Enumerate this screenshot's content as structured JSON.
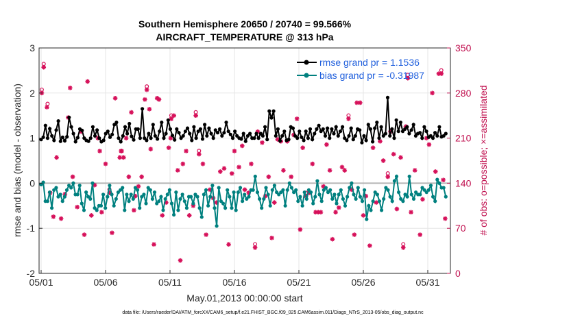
{
  "chart_data": {
    "type": "line",
    "title": "Southern Hemisphere 20650 / 20740 = 99.566%",
    "subtitle": "AIRCRAFT_TEMPERATURE @ 313 hPa",
    "xlabel": "May.01,2013 00:00:00 start",
    "ylabel_left": "rmse and bias (model - observation)",
    "ylabel_right": "# of obs: o=possible; ×=assimilated",
    "footer": "data file: /Users/raeder/DAI/ATM_forcXX/CAM6_setup/f.e21.FHIST_BGC.f09_025.CAM6assim.011/Diags_NTrS_2013-05/obs_diag_output.nc",
    "x_range_days": [
      0,
      31.5
    ],
    "x_ticks": [
      {
        "day": 0,
        "label": "05/01"
      },
      {
        "day": 5,
        "label": "05/06"
      },
      {
        "day": 10,
        "label": "05/11"
      },
      {
        "day": 15,
        "label": "05/16"
      },
      {
        "day": 20,
        "label": "05/21"
      },
      {
        "day": 25,
        "label": "05/26"
      },
      {
        "day": 30,
        "label": "05/31"
      }
    ],
    "y_left": {
      "min": -2,
      "max": 3,
      "ticks": [
        "-2",
        "-1",
        "0",
        "1",
        "2",
        "3"
      ]
    },
    "y_right": {
      "min": 0,
      "max": 350,
      "ticks": [
        "0",
        "70",
        "140",
        "210",
        "280",
        "350"
      ]
    },
    "grid": true,
    "legend_position": "top-right",
    "colors": {
      "rmse": "#000000",
      "bias": "#00807f",
      "obs": "#d6115a",
      "legend_text": "#1f5fdd",
      "right_axis": "#c0104f",
      "zero_line": "#b4b4b4"
    },
    "series": [
      {
        "name": "rmse grand pr = 1.1536",
        "axis": "left",
        "values": [
          0.97,
          1.02,
          1.28,
          1.0,
          1.21,
          1.05,
          0.95,
          1.18,
          1.38,
          0.93,
          1.02,
          0.94,
          1.03,
          1.46,
          1.25,
          1.1,
          0.92,
          1.01,
          1.2,
          1.17,
          1.0,
          0.95,
          0.93,
          1.0,
          1.25,
          1.05,
          1.18,
          1.0,
          0.92,
          0.95,
          1.1,
          1.15,
          1.02,
          1.08,
          1.3,
          1.35,
          1.0,
          0.92,
          1.05,
          1.25,
          1.1,
          1.32,
          1.04,
          0.96,
          1.2,
          1.2,
          1.0,
          1.65,
          1.0,
          0.95,
          1.1,
          1.0,
          1.3,
          1.05,
          0.98,
          1.15,
          1.35,
          1.0,
          1.1,
          1.4,
          1.2,
          1.06,
          0.96,
          1.2,
          1.12,
          1.0,
          1.05,
          1.15,
          1.22,
          1.1,
          0.95,
          1.25,
          1.0,
          1.15,
          1.2,
          0.98,
          1.3,
          1.05,
          1.22,
          1.1,
          1.0,
          1.18,
          1.12,
          1.2,
          1.05,
          1.12,
          1.35,
          1.15,
          1.08,
          1.0,
          1.15,
          1.05,
          1.0,
          0.98,
          1.1,
          0.93,
          1.05,
          1.1,
          1.0,
          1.0,
          1.1,
          1.0,
          1.1,
          1.05,
          1.25,
          0.97,
          1.6,
          1.45,
          1.6,
          1.05,
          1.2,
          0.94,
          1.05,
          1.15,
          0.95,
          0.97,
          1.25,
          1.22,
          1.05,
          1.0,
          1.15,
          1.02,
          0.95,
          1.15,
          1.0,
          1.2,
          0.97,
          1.1,
          1.2,
          1.28,
          1.15,
          1.2,
          1.05,
          1.22,
          1.0,
          1.2,
          1.1,
          1.25,
          1.05,
          1.15,
          1.25,
          1.0,
          0.95,
          1.05,
          1.22,
          0.97,
          1.05,
          1.2,
          1.18,
          0.9,
          1.05,
          0.95,
          1.3,
          1.2,
          0.92,
          1.22,
          1.35,
          1.0,
          1.25,
          1.05,
          1.1,
          1.9,
          1.05,
          1.2,
          1.0,
          1.4,
          1.15,
          1.35,
          1.15,
          1.2,
          1.25,
          1.1,
          1.18,
          1.3,
          1.05,
          1.1,
          1.12,
          1.0,
          1.25,
          1.15,
          1.02,
          1.05,
          1.0,
          1.12,
          1.05,
          1.25,
          1.03,
          1.05,
          1.1
        ]
      },
      {
        "name": "bias grand pr = -0.31987",
        "axis": "left",
        "values": [
          -0.03,
          0.02,
          -0.4,
          -0.4,
          -0.2,
          -0.55,
          -0.15,
          -0.1,
          -0.3,
          -0.25,
          -0.4,
          -0.3,
          -0.15,
          -0.05,
          -0.1,
          0.0,
          -0.25,
          -0.25,
          -0.05,
          -0.45,
          -0.6,
          -0.2,
          -0.3,
          -0.35,
          0.0,
          -0.55,
          -0.6,
          -0.5,
          -0.5,
          -0.25,
          -0.55,
          -0.3,
          -0.05,
          -0.25,
          -0.5,
          -0.35,
          -0.2,
          -0.15,
          -0.1,
          -0.6,
          -0.25,
          -0.4,
          -0.25,
          -0.35,
          -0.1,
          -0.15,
          -0.55,
          -0.3,
          -0.25,
          -0.45,
          -0.1,
          -0.15,
          -0.35,
          -0.2,
          -0.45,
          -0.4,
          -0.3,
          -0.6,
          -0.35,
          -0.25,
          -0.15,
          -0.45,
          -0.7,
          -0.2,
          -0.6,
          -0.35,
          -0.25,
          -0.4,
          -0.55,
          -0.3,
          -0.3,
          -0.45,
          -0.25,
          -0.3,
          -0.55,
          -0.75,
          -0.25,
          -0.15,
          -0.5,
          -0.3,
          -0.05,
          -0.55,
          -0.95,
          -0.1,
          -0.4,
          -0.45,
          -0.55,
          -0.15,
          -0.3,
          -0.55,
          -0.2,
          -0.6,
          -0.2,
          -0.1,
          -0.4,
          -0.25,
          -0.35,
          -0.3,
          -0.15,
          -0.15,
          0.15,
          -0.2,
          -0.35,
          -0.55,
          -0.35,
          -0.1,
          -0.25,
          -0.5,
          -0.15,
          -0.05,
          -0.2,
          -0.25,
          -0.2,
          -0.15,
          -0.5,
          -0.15,
          0.0,
          -0.1,
          -0.2,
          -0.15,
          -0.4,
          -0.3,
          -0.5,
          -0.2,
          -0.35,
          -0.15,
          -0.2,
          -0.45,
          -0.3,
          0.05,
          -0.25,
          -0.4,
          -0.15,
          -0.1,
          -0.2,
          -0.15,
          -0.35,
          -0.25,
          -0.45,
          -0.25,
          -0.15,
          -0.35,
          -0.5,
          -0.3,
          -0.1,
          0.0,
          -0.25,
          -0.35,
          -0.1,
          -0.3,
          -0.4,
          -0.15,
          -0.8,
          -0.5,
          -0.6,
          -0.4,
          -0.2,
          -0.25,
          -0.4,
          -0.6,
          -0.35,
          -0.1,
          -0.15,
          -0.3,
          -0.4,
          0.05,
          0.15,
          -0.2,
          -0.35,
          -0.4,
          -0.25,
          -0.3,
          0.15,
          -0.25,
          -0.35,
          -0.2,
          -0.25,
          -0.25,
          -0.1,
          -0.15,
          -0.2,
          -0.15,
          -0.05,
          -0.3,
          -0.4,
          0.08,
          0.0,
          -0.1,
          -0.1,
          -0.3
        ]
      }
    ],
    "obs_assimilated": [
      [
        0.05,
        280
      ],
      [
        0.2,
        320
      ],
      [
        0.45,
        258
      ],
      [
        0.7,
        125
      ],
      [
        0.95,
        88
      ],
      [
        1.2,
        180
      ],
      [
        1.55,
        85
      ],
      [
        1.85,
        123
      ],
      [
        2.1,
        242
      ],
      [
        2.25,
        288
      ],
      [
        2.45,
        150
      ],
      [
        2.8,
        103
      ],
      [
        3.1,
        220
      ],
      [
        3.35,
        60
      ],
      [
        3.6,
        298
      ],
      [
        3.9,
        90
      ],
      [
        4.15,
        137
      ],
      [
        4.4,
        210
      ],
      [
        4.55,
        190
      ],
      [
        4.7,
        95
      ],
      [
        5.0,
        170
      ],
      [
        5.3,
        125
      ],
      [
        5.5,
        63
      ],
      [
        5.75,
        272
      ],
      [
        6.1,
        180
      ],
      [
        6.2,
        190
      ],
      [
        6.25,
        190
      ],
      [
        6.4,
        180
      ],
      [
        6.6,
        210
      ],
      [
        6.8,
        150
      ],
      [
        7.0,
        250
      ],
      [
        7.2,
        98
      ],
      [
        7.3,
        120
      ],
      [
        7.55,
        135
      ],
      [
        7.8,
        150
      ],
      [
        8.05,
        270
      ],
      [
        8.2,
        285
      ],
      [
        8.4,
        255
      ],
      [
        8.5,
        193
      ],
      [
        8.75,
        45
      ],
      [
        9.0,
        272
      ],
      [
        9.15,
        270
      ],
      [
        9.4,
        90
      ],
      [
        9.7,
        110
      ],
      [
        9.9,
        195
      ],
      [
        10.05,
        210
      ],
      [
        10.1,
        240
      ],
      [
        10.3,
        245
      ],
      [
        10.6,
        160
      ],
      [
        10.8,
        20
      ],
      [
        11.0,
        170
      ],
      [
        11.25,
        190
      ],
      [
        11.5,
        90
      ],
      [
        11.8,
        105
      ],
      [
        12.0,
        245
      ],
      [
        12.25,
        185
      ],
      [
        12.55,
        170
      ],
      [
        12.8,
        60
      ],
      [
        13.1,
        130
      ],
      [
        13.35,
        117
      ],
      [
        13.6,
        110
      ],
      [
        13.9,
        158
      ],
      [
        14.2,
        163
      ],
      [
        14.55,
        45
      ],
      [
        14.8,
        155
      ],
      [
        15.0,
        190
      ],
      [
        15.35,
        165
      ],
      [
        15.6,
        198
      ],
      [
        15.8,
        130
      ],
      [
        16.1,
        125
      ],
      [
        16.3,
        170
      ],
      [
        16.6,
        40
      ],
      [
        16.8,
        220
      ],
      [
        17.15,
        203
      ],
      [
        17.4,
        120
      ],
      [
        17.65,
        150
      ],
      [
        17.9,
        55
      ],
      [
        18.1,
        110
      ],
      [
        18.35,
        208
      ],
      [
        18.6,
        205
      ],
      [
        18.8,
        160
      ],
      [
        19.1,
        205
      ],
      [
        19.4,
        150
      ],
      [
        19.6,
        215
      ],
      [
        19.85,
        240
      ],
      [
        20.1,
        68
      ],
      [
        20.3,
        195
      ],
      [
        20.55,
        120
      ],
      [
        20.8,
        125
      ],
      [
        21.05,
        170
      ],
      [
        21.3,
        95
      ],
      [
        21.5,
        95
      ],
      [
        21.7,
        95
      ],
      [
        21.9,
        135
      ],
      [
        22.15,
        200
      ],
      [
        22.4,
        160
      ],
      [
        22.6,
        53
      ],
      [
        22.85,
        95
      ],
      [
        23.1,
        102
      ],
      [
        23.35,
        165
      ],
      [
        23.55,
        160
      ],
      [
        23.85,
        240
      ],
      [
        24.1,
        130
      ],
      [
        24.3,
        60
      ],
      [
        24.5,
        265
      ],
      [
        24.75,
        265
      ],
      [
        25.0,
        90
      ],
      [
        25.2,
        120
      ],
      [
        25.5,
        43
      ],
      [
        25.75,
        195
      ],
      [
        26.0,
        110
      ],
      [
        26.3,
        205
      ],
      [
        26.55,
        175
      ],
      [
        26.9,
        150
      ],
      [
        27.1,
        220
      ],
      [
        27.35,
        185
      ],
      [
        27.6,
        100
      ],
      [
        27.9,
        180
      ],
      [
        28.1,
        40
      ],
      [
        28.3,
        228
      ],
      [
        28.45,
        303
      ],
      [
        28.7,
        95
      ],
      [
        29.0,
        160
      ],
      [
        29.4,
        60
      ],
      [
        29.6,
        115
      ],
      [
        29.9,
        210
      ],
      [
        30.1,
        200
      ],
      [
        30.35,
        280
      ],
      [
        30.6,
        158
      ],
      [
        30.85,
        310
      ],
      [
        31.05,
        310
      ],
      [
        31.2,
        145
      ],
      [
        31.35,
        85
      ]
    ],
    "obs_possible": [
      [
        0.05,
        281
      ],
      [
        0.2,
        321
      ],
      [
        0.5,
        259
      ],
      [
        5.3,
        126
      ],
      [
        8.2,
        286
      ],
      [
        10.1,
        241
      ],
      [
        12.0,
        246
      ],
      [
        12.25,
        186
      ],
      [
        16.6,
        41
      ],
      [
        20.55,
        121
      ],
      [
        23.85,
        241
      ],
      [
        26.9,
        151
      ],
      [
        28.1,
        41
      ],
      [
        28.45,
        304
      ],
      [
        31.05,
        311
      ]
    ]
  }
}
